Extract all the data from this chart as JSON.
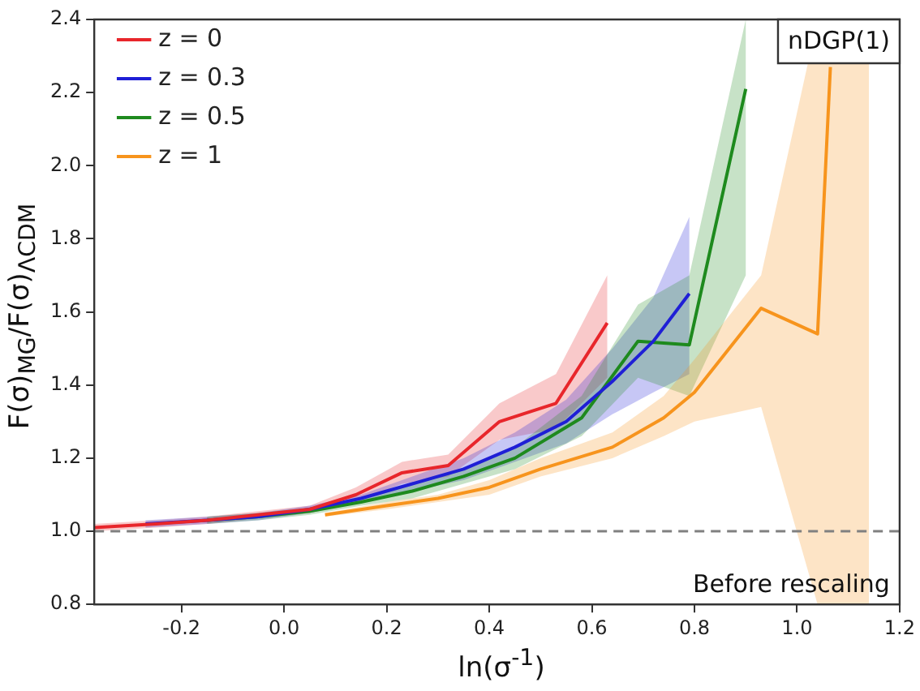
{
  "chart_data": {
    "type": "line",
    "xlabel": "ln(σ$^{-1}$)",
    "ylabel": "F(σ)$_{MG}$/F(σ)$_{ΛCDM}$",
    "xlim": [
      -0.37,
      1.2
    ],
    "xticks": [
      -0.2,
      {
        "value": 0,
        "label": "0.0"
      },
      0.2,
      0.4,
      0.6,
      0.8,
      {
        "value": 1,
        "label": "1.0"
      },
      1.2
    ],
    "ylim": [
      0.8,
      2.4
    ],
    "yticks": [
      0.8,
      {
        "value": 1,
        "label": "1.0"
      },
      1.2,
      1.4,
      1.6,
      1.8,
      {
        "value": 2,
        "label": "2.0"
      },
      2.2,
      2.4
    ],
    "grid": false,
    "legend": "top left",
    "marker": "none",
    "line_style": "solid",
    "annotations": [
      "nDGP(1)",
      "Before rescaling"
    ],
    "ref_lines": [
      {
        "axis": "y",
        "value": 1.0,
        "color": "#808080",
        "line_style": "dashed"
      }
    ],
    "series": [
      {
        "name": "z = 0",
        "color": "#e8262b",
        "x": [
          -0.37,
          -0.25,
          -0.15,
          -0.05,
          0.05,
          0.14,
          0.23,
          0.32,
          0.42,
          0.53,
          0.63
        ],
        "values": [
          1.01,
          1.02,
          1.03,
          1.045,
          1.06,
          1.1,
          1.16,
          1.18,
          1.3,
          1.35,
          1.57
        ],
        "lower": [
          1.0,
          1.01,
          1.02,
          1.035,
          1.05,
          1.08,
          1.13,
          1.15,
          1.25,
          1.28,
          1.42
        ],
        "upper": [
          1.02,
          1.03,
          1.04,
          1.055,
          1.07,
          1.12,
          1.19,
          1.21,
          1.35,
          1.43,
          1.7
        ]
      },
      {
        "name": "z = 0.3",
        "color": "#1f1fd6",
        "x": [
          -0.27,
          -0.15,
          -0.05,
          0.05,
          0.15,
          0.25,
          0.35,
          0.45,
          0.55,
          0.64,
          0.72,
          0.79
        ],
        "values": [
          1.02,
          1.03,
          1.04,
          1.06,
          1.09,
          1.13,
          1.17,
          1.23,
          1.3,
          1.41,
          1.52,
          1.65
        ],
        "lower": [
          1.01,
          1.02,
          1.03,
          1.05,
          1.08,
          1.11,
          1.14,
          1.19,
          1.24,
          1.32,
          1.38,
          1.43
        ],
        "upper": [
          1.03,
          1.04,
          1.05,
          1.07,
          1.1,
          1.15,
          1.2,
          1.27,
          1.36,
          1.5,
          1.64,
          1.86
        ]
      },
      {
        "name": "z = 0.5",
        "color": "#1e8a1e",
        "x": [
          -0.15,
          -0.05,
          0.05,
          0.15,
          0.25,
          0.35,
          0.45,
          0.58,
          0.69,
          0.79,
          0.9
        ],
        "values": [
          1.03,
          1.04,
          1.055,
          1.08,
          1.11,
          1.15,
          1.2,
          1.31,
          1.52,
          1.51,
          2.21
        ],
        "lower": [
          1.02,
          1.03,
          1.045,
          1.07,
          1.09,
          1.13,
          1.17,
          1.26,
          1.42,
          1.37,
          1.7
        ],
        "upper": [
          1.04,
          1.05,
          1.065,
          1.09,
          1.13,
          1.17,
          1.23,
          1.37,
          1.62,
          1.7,
          2.4
        ]
      },
      {
        "name": "z = 1",
        "color": "#f7941d",
        "x": [
          0.08,
          0.2,
          0.3,
          0.4,
          0.5,
          0.64,
          0.74,
          0.8,
          0.93,
          1.04,
          1.065,
          1.14
        ],
        "values": [
          1.045,
          1.07,
          1.09,
          1.12,
          1.17,
          1.23,
          1.31,
          1.38,
          1.61,
          1.54,
          2.27,
          null
        ],
        "lower": [
          1.04,
          1.06,
          1.08,
          1.1,
          1.15,
          1.2,
          1.26,
          1.3,
          1.34,
          0.8,
          0.8,
          0.8
        ],
        "upper": [
          1.05,
          1.08,
          1.1,
          1.14,
          1.2,
          1.27,
          1.37,
          1.47,
          1.7,
          2.4,
          2.4,
          2.4
        ]
      }
    ]
  }
}
